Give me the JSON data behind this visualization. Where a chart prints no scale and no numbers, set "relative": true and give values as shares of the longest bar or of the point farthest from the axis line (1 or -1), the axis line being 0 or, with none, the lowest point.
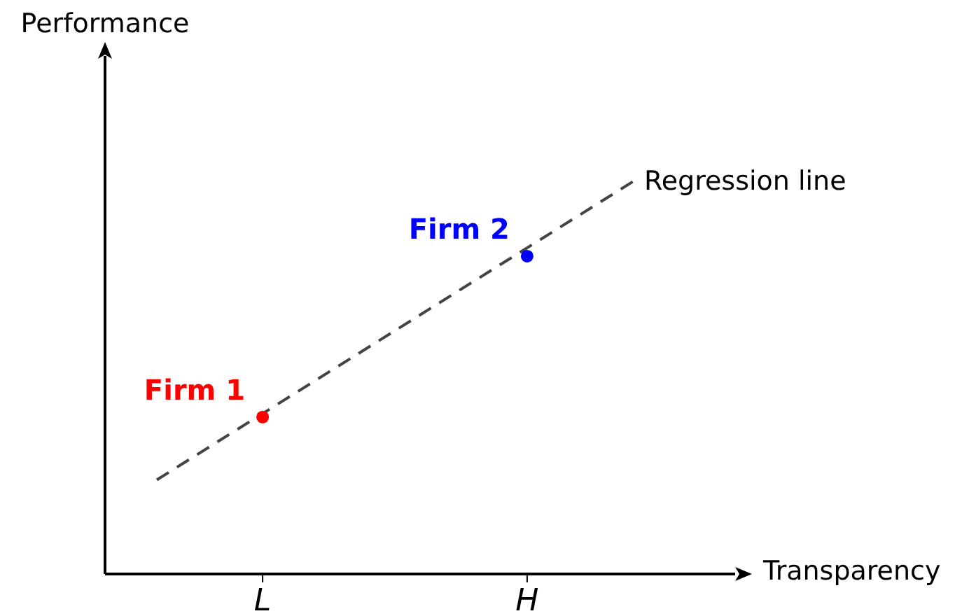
{
  "chart_data": {
    "type": "scatter",
    "relative": true,
    "xlabel": "Transparency",
    "annotations": [
      "Performance"
    ],
    "categories": [
      null,
      null,
      "L",
      null,
      null,
      null,
      null,
      "H",
      null,
      null
    ],
    "series": [
      {
        "name": "Regression line",
        "type": "line",
        "color": "#444444",
        "line_style": "dashed",
        "marker": "none",
        "values": [
          0.24,
          null,
          null,
          null,
          null,
          null,
          null,
          null,
          null,
          1
        ]
      },
      {
        "name": "Firm 1",
        "color": "#ff0000",
        "marker": "circle",
        "values": [
          null,
          null,
          0.4,
          null,
          null,
          null,
          null,
          null,
          null,
          null
        ]
      },
      {
        "name": "Firm 2",
        "color": "#0000ff",
        "marker": "circle",
        "values": [
          null,
          null,
          null,
          null,
          null,
          null,
          null,
          0.81,
          null,
          null
        ]
      }
    ]
  }
}
